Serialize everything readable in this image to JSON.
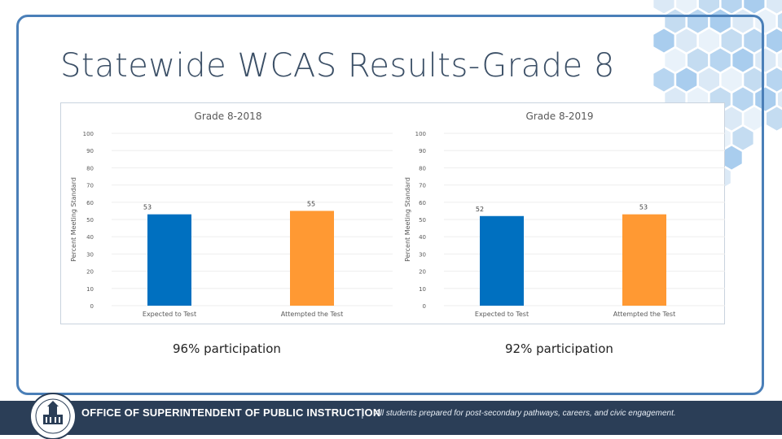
{
  "slide": {
    "title": "Statewide WCAS Results-Grade 8",
    "participation_left": "96% participation",
    "participation_right": "92% participation"
  },
  "footer": {
    "org_name": "OFFICE OF SUPERINTENDENT OF PUBLIC INSTRUCTION",
    "separator": "|",
    "tagline": "All students prepared for post-secondary pathways, careers, and civic engagement."
  },
  "colors": {
    "blue_bar": "#0070c0",
    "orange_bar": "#ff9933",
    "frame": "#4a7fb8",
    "footer_bg": "#2b3e57"
  },
  "chart_data": [
    {
      "type": "bar",
      "title": "Grade 8-2018",
      "categories": [
        "Expected to Test",
        "Attempted the Test"
      ],
      "values": [
        53,
        55
      ],
      "labels": [
        "53",
        "55"
      ],
      "bar_colors": [
        "#0070c0",
        "#ff9933"
      ],
      "ylabel": "Percent Meeting Standard",
      "xlabel": "",
      "ylim": [
        0,
        100
      ],
      "yticks": [
        0,
        10,
        20,
        30,
        40,
        50,
        60,
        70,
        80,
        90,
        100
      ],
      "grid": true
    },
    {
      "type": "bar",
      "title": "Grade 8-2019",
      "categories": [
        "Expected to Test",
        "Attempted the Test"
      ],
      "values": [
        52,
        53
      ],
      "labels": [
        "52",
        "53"
      ],
      "bar_colors": [
        "#0070c0",
        "#ff9933"
      ],
      "ylabel": "Percent Meeting Standard",
      "xlabel": "",
      "ylim": [
        0,
        100
      ],
      "yticks": [
        0,
        10,
        20,
        30,
        40,
        50,
        60,
        70,
        80,
        90,
        100
      ],
      "grid": true
    }
  ]
}
